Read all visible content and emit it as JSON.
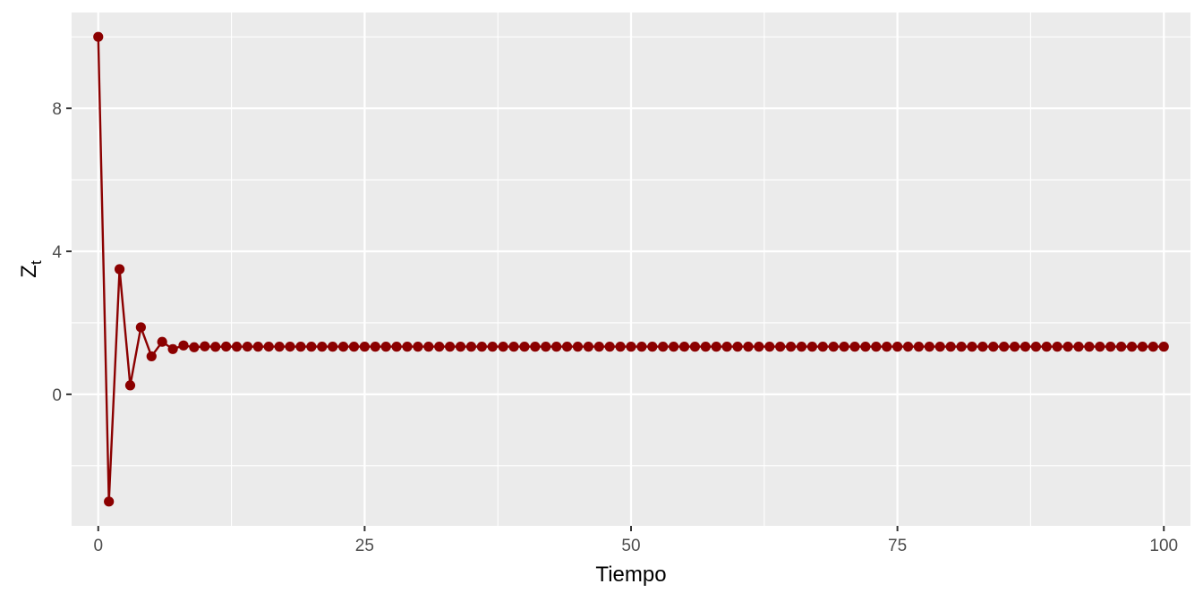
{
  "chart_data": {
    "type": "line",
    "title": "",
    "xlabel": "Tiempo",
    "ylabel": {
      "base": "Z",
      "subscript": "t"
    },
    "xlim": [
      -2.5,
      102.5
    ],
    "ylim": [
      -3.68,
      10.68
    ],
    "x_ticks": [
      0,
      25,
      50,
      75,
      100
    ],
    "x_tick_labels": [
      "0",
      "25",
      "50",
      "75",
      "100"
    ],
    "y_ticks": [
      0,
      4,
      8
    ],
    "y_tick_labels": [
      "0",
      "4",
      "8"
    ],
    "x_minor_ticks": [
      12.5,
      37.5,
      62.5,
      87.5
    ],
    "y_minor_ticks": [
      -2,
      2,
      6,
      10
    ],
    "grid": true,
    "markers": true,
    "colors": {
      "panel": "#ebebeb",
      "grid": "#ffffff",
      "series": "#8b0000"
    },
    "series": [
      {
        "values": [
          10.0,
          -3.0,
          3.5,
          0.25,
          1.875,
          1.0625,
          1.46875,
          1.265625,
          1.3671875,
          1.3164,
          1.3418,
          1.3291,
          1.3354,
          1.3323,
          1.3339,
          1.3331,
          1.3335,
          1.3333,
          1.3334,
          1.3333,
          1.3333,
          1.3333,
          1.3333,
          1.3333,
          1.3333,
          1.3333,
          1.3333,
          1.3333,
          1.3333,
          1.3333,
          1.3333,
          1.3333,
          1.3333,
          1.3333,
          1.3333,
          1.3333,
          1.3333,
          1.3333,
          1.3333,
          1.3333,
          1.3333,
          1.3333,
          1.3333,
          1.3333,
          1.3333,
          1.3333,
          1.3333,
          1.3333,
          1.3333,
          1.3333,
          1.3333,
          1.3333,
          1.3333,
          1.3333,
          1.3333,
          1.3333,
          1.3333,
          1.3333,
          1.3333,
          1.3333,
          1.3333,
          1.3333,
          1.3333,
          1.3333,
          1.3333,
          1.3333,
          1.3333,
          1.3333,
          1.3333,
          1.3333,
          1.3333,
          1.3333,
          1.3333,
          1.3333,
          1.3333,
          1.3333,
          1.3333,
          1.3333,
          1.3333,
          1.3333,
          1.3333,
          1.3333,
          1.3333,
          1.3333,
          1.3333,
          1.3333,
          1.3333,
          1.3333,
          1.3333,
          1.3333,
          1.3333,
          1.3333,
          1.3333,
          1.3333,
          1.3333,
          1.3333,
          1.3333,
          1.3333,
          1.3333,
          1.3333,
          1.3333
        ]
      }
    ]
  }
}
